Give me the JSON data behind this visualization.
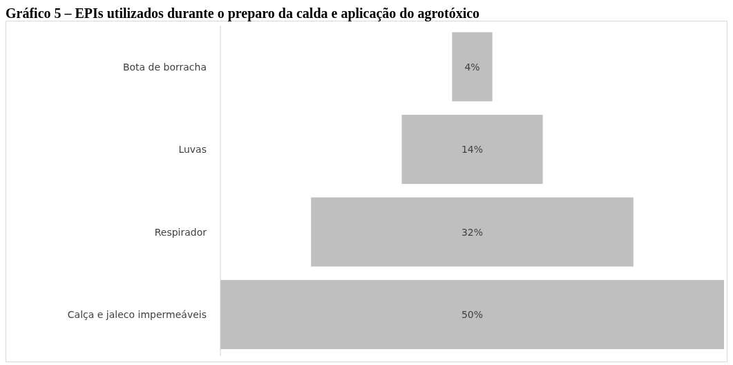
{
  "chart_data": {
    "type": "other",
    "title": "Gráfico 5 – EPIs utilizados durante o preparo da calda e aplicação do agrotóxico",
    "categories": [
      "Bota de borracha",
      "Luvas",
      "Respirador",
      "Calça e jaleco impermeáveis"
    ],
    "values": [
      4,
      14,
      32,
      50
    ],
    "value_labels": [
      "4%",
      "14%",
      "32%",
      "50%"
    ],
    "color": "#bfbfbf"
  }
}
